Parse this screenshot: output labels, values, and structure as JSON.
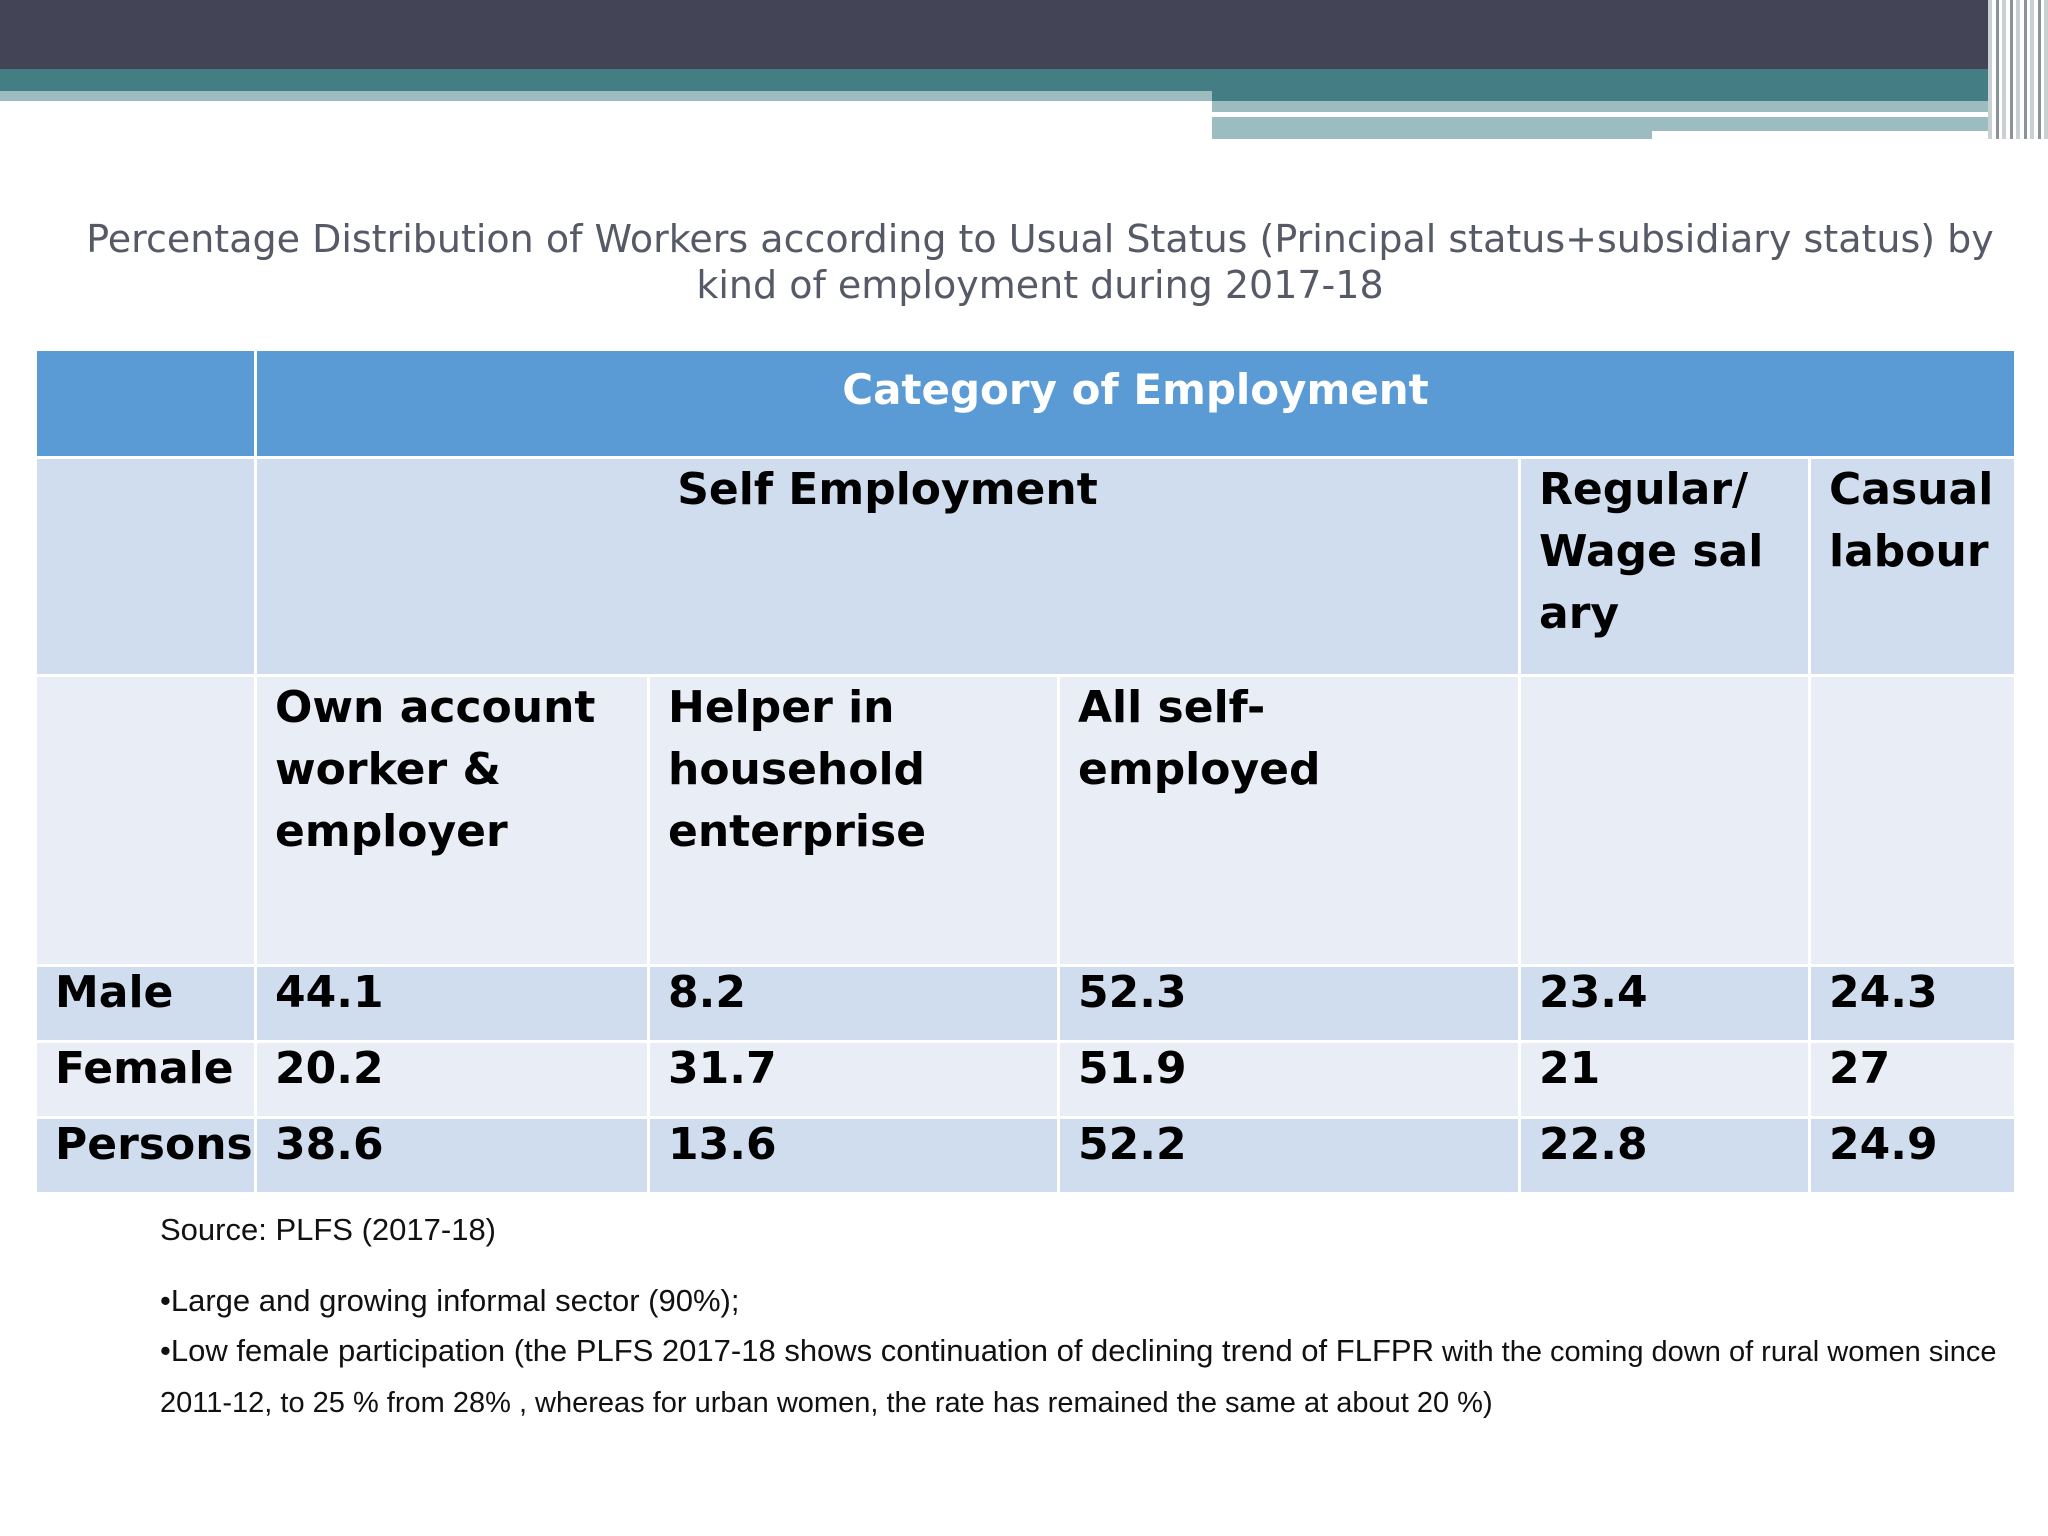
{
  "title": "Percentage Distribution of Workers according to Usual Status (Principal status+subsidiary status) by kind of  employment during 2017-18",
  "table": {
    "category_header": "Category of Employment",
    "self_employment": "Self Employment",
    "regular_wage": "Regular/Wage  salary",
    "casual_labour": "Casual labour",
    "sub_headers": {
      "own_account": "Own account worker & employer",
      "helper": "Helper in household enterprise",
      "all_self": "All self-  employed"
    },
    "rows": [
      {
        "label": "Male",
        "own": "44.1",
        "helper": "8.2",
        "all": "52.3",
        "regular": "23.4",
        "casual": "24.3"
      },
      {
        "label": "Female",
        "own": "20.2",
        "helper": "31.7",
        "all": "51.9",
        "regular": "21",
        "casual": "27"
      },
      {
        "label": "Persons",
        "own": "38.6",
        "helper": "13.6",
        "all": "52.2",
        "regular": "22.8",
        "casual": "24.9"
      }
    ]
  },
  "notes": {
    "source": "Source: PLFS (2017-18)",
    "bullet1": "•Large and growing informal sector (90%);",
    "bullet2_main": "•Low female participation (the PLFS 2017-18 shows continuation of declining trend of FLFPR",
    "bullet2_small": " with the coming down of  rural women since 2011-12, to 25 % from 28% , whereas for urban women, the rate has remained the same at about 20 %)"
  }
}
